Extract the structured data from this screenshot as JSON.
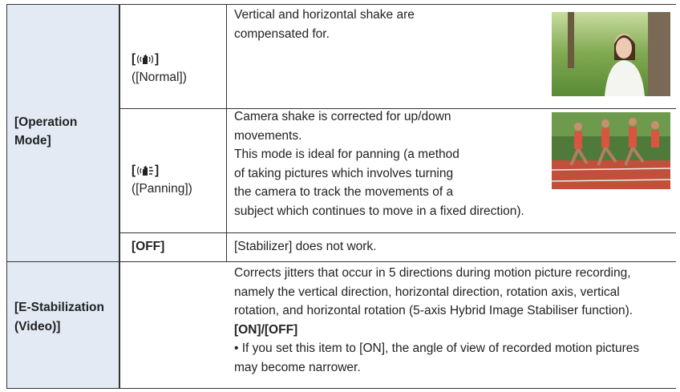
{
  "operation_mode": {
    "label": [
      "[Operation",
      "Mode]"
    ],
    "options": [
      {
        "open": "[",
        "close": "]",
        "name": "([Normal])",
        "description": [
          "Vertical and horizontal shake are",
          "compensated for."
        ]
      },
      {
        "open": "[",
        "close": "]",
        "name": "([Panning])",
        "description": [
          "Camera shake is corrected for up/down",
          "movements.",
          "This mode is ideal for panning (a method",
          "of taking pictures which involves turning",
          "the camera to track the movements of a",
          "subject which continues to move in a fixed direction)."
        ]
      },
      {
        "name": "[OFF]",
        "description": [
          "[Stabilizer] does not work."
        ]
      }
    ]
  },
  "e_stabilization": {
    "label": [
      "[E-Stabilization",
      "(Video)]"
    ],
    "description": [
      "Corrects jitters that occur in 5 directions during motion picture recording,",
      "namely the vertical direction, horizontal direction, rotation axis, vertical",
      "rotation, and horizontal rotation (5-axis Hybrid Image Stabiliser function)."
    ],
    "values": "[ON]/[OFF]",
    "note": [
      "• If you set this item to [ON], the angle of view of recorded motion pictures",
      "may become narrower."
    ]
  }
}
